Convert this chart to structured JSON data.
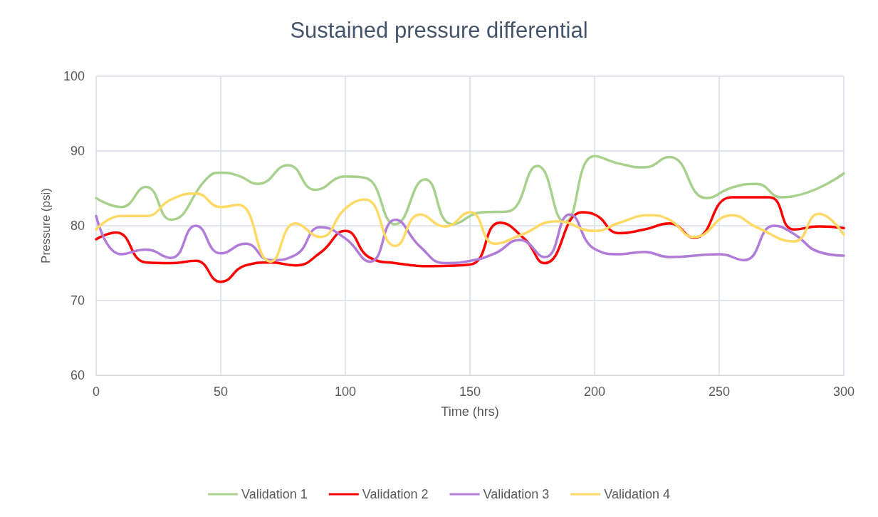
{
  "chart_data": {
    "type": "line",
    "title": "Sustained pressure differential",
    "xlabel": "Time (hrs)",
    "ylabel": "Pressure (psi)",
    "xlim": [
      0,
      300
    ],
    "xticks": [
      0,
      50,
      100,
      150,
      200,
      250,
      300
    ],
    "ylim": [
      60,
      100
    ],
    "yticks": [
      60,
      70,
      80,
      90,
      100
    ],
    "grid": true,
    "legend": "bottom",
    "marker": "none",
    "line_style": "solid",
    "series": [
      {
        "name": "Validation 1",
        "color": "#a9d18e",
        "x": [
          0,
          10,
          20,
          30,
          45,
          50,
          57,
          65,
          77,
          88,
          100,
          108,
          120,
          132,
          143,
          155,
          165,
          177,
          188,
          200,
          210,
          220,
          230,
          245,
          255,
          265,
          275,
          300
        ],
        "values": [
          83.7,
          82.5,
          85.2,
          80.8,
          86.5,
          87.1,
          86.7,
          85.6,
          88.1,
          84.8,
          86.6,
          86.4,
          80.2,
          86.2,
          80.2,
          81.8,
          81.9,
          88,
          80.5,
          89.3,
          88.3,
          87.8,
          89.2,
          83.7,
          85.1,
          85.6,
          83.8,
          87
        ]
      },
      {
        "name": "Validation 2",
        "color": "#ff0000",
        "x": [
          0,
          8,
          20,
          30,
          40,
          50,
          60,
          70,
          80,
          90,
          100,
          110,
          120,
          135,
          150,
          162,
          172,
          180,
          195,
          200,
          210,
          220,
          230,
          240,
          255,
          270,
          280,
          290,
          300
        ],
        "values": [
          78.2,
          79.1,
          75.1,
          75,
          75.3,
          72.5,
          74.7,
          75.1,
          74.7,
          76.4,
          79.3,
          75.7,
          75,
          74.6,
          74.8,
          80.4,
          78.2,
          75,
          81.8,
          81.5,
          79,
          79.5,
          80.3,
          78.4,
          83.8,
          83.8,
          79.5,
          79.9,
          79.7
        ]
      },
      {
        "name": "Validation 3",
        "color": "#b07cd8",
        "x": [
          0,
          10,
          20,
          30,
          40,
          50,
          60,
          70,
          80,
          90,
          100,
          110,
          120,
          130,
          140,
          150,
          160,
          170,
          180,
          190,
          200,
          210,
          220,
          230,
          250,
          260,
          272,
          280,
          290,
          300
        ],
        "values": [
          81.3,
          76.2,
          76.8,
          75.7,
          80,
          76.3,
          77.6,
          75.4,
          76.1,
          79.8,
          78.3,
          75.2,
          80.8,
          77.2,
          75,
          75.3,
          76.3,
          78.1,
          75.8,
          81.5,
          76.9,
          76.2,
          76.5,
          75.8,
          76.2,
          75.4,
          80,
          78.9,
          76.5,
          76
        ]
      },
      {
        "name": "Validation 4",
        "color": "#ffd966",
        "x": [
          0,
          10,
          20,
          30,
          40,
          50,
          57,
          70,
          80,
          90,
          100,
          108,
          120,
          130,
          140,
          150,
          160,
          170,
          185,
          200,
          210,
          222,
          230,
          240,
          255,
          265,
          280,
          290,
          300
        ],
        "values": [
          79.5,
          81.3,
          81.3,
          83.5,
          84.3,
          82.5,
          82.8,
          75.2,
          80.3,
          78.5,
          82.3,
          83.5,
          77.3,
          81.5,
          79.9,
          81.8,
          77.6,
          78.7,
          80.6,
          79.3,
          80.4,
          81.4,
          80.8,
          78.5,
          81.4,
          79.8,
          77.9,
          81.6,
          78.8
        ]
      }
    ]
  }
}
